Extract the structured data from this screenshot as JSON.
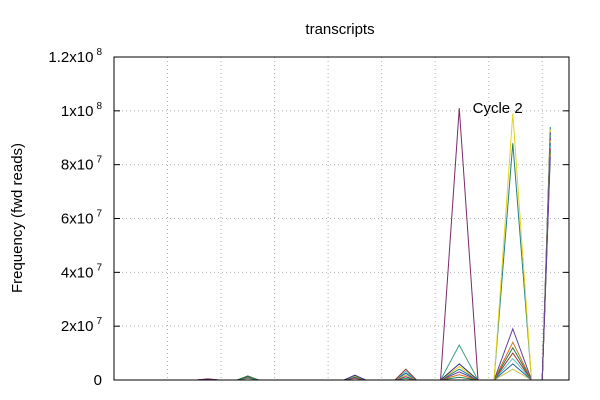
{
  "chart_data": {
    "type": "line",
    "title": "transcripts",
    "xlabel": "",
    "ylabel": "Frequency (fwd reads)",
    "ylim": [
      0,
      120000000
    ],
    "xlim": [
      0,
      17
    ],
    "grid": true,
    "legend": "none",
    "y_ticks": [
      {
        "value": 0,
        "mantissa": "0",
        "exp": ""
      },
      {
        "value": 20000000,
        "mantissa": "2x10",
        "exp": "7"
      },
      {
        "value": 40000000,
        "mantissa": "4x10",
        "exp": "7"
      },
      {
        "value": 60000000,
        "mantissa": "6x10",
        "exp": "7"
      },
      {
        "value": 80000000,
        "mantissa": "8x10",
        "exp": "7"
      },
      {
        "value": 100000000,
        "mantissa": "1x10",
        "exp": "8"
      },
      {
        "value": 120000000,
        "mantissa": "1.2x10",
        "exp": "8"
      }
    ],
    "x_grid": [
      2,
      4,
      6,
      8,
      10,
      12,
      14,
      16
    ],
    "annotation": {
      "text": "Cycle 2",
      "x": 13.4,
      "y": 100000000
    },
    "colors": [
      "#1f7f7f",
      "#e6d41a",
      "#2a2a8a",
      "#3aa07a",
      "#7a2a6a",
      "#c8c040",
      "#2060a0",
      "#50c0c0",
      "#a03030",
      "#208040",
      "#d07020",
      "#6040a0"
    ],
    "peaks": [
      {
        "center": 3.5,
        "half_width": 0.4,
        "peak_values": [
          400000,
          350000,
          300000,
          250000,
          200000
        ]
      },
      {
        "center": 5.0,
        "half_width": 0.4,
        "peak_values": [
          1500000,
          1200000,
          1000000,
          800000,
          600000
        ]
      },
      {
        "center": 9.0,
        "half_width": 0.4,
        "peak_values": [
          1800000,
          1500000,
          1200000,
          900000,
          600000
        ]
      },
      {
        "center": 10.9,
        "half_width": 0.4,
        "peak_values": [
          4000000,
          3200000,
          2500000,
          1800000,
          1200000,
          600000
        ]
      },
      {
        "center": 12.9,
        "half_width": 0.7,
        "peak_values": [
          101000000,
          13000000,
          6000000,
          5000000,
          4000000,
          3000000,
          2000000,
          1000000
        ]
      },
      {
        "center": 14.9,
        "half_width": 0.7,
        "peak_values": [
          99000000,
          88000000,
          19000000,
          14000000,
          12000000,
          10000000,
          8000000,
          6000000,
          4000000
        ]
      }
    ],
    "ramp": {
      "x_start": 16.0,
      "x_end": 16.3,
      "end_values": [
        94000000,
        93000000,
        92000000,
        91000000,
        90000000,
        89000000,
        88000000,
        87000000,
        86000000,
        85000000,
        84000000,
        83000000
      ]
    }
  }
}
